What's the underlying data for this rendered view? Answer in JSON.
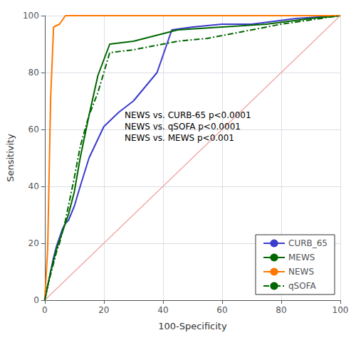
{
  "chart_data": {
    "type": "line",
    "xlabel": "100-Specificity",
    "ylabel": "Sensitivity",
    "xlim": [
      0,
      100
    ],
    "ylim": [
      0,
      100
    ],
    "xticks": [
      0,
      20,
      40,
      60,
      80,
      100
    ],
    "yticks": [
      0,
      20,
      40,
      60,
      80,
      100
    ],
    "grid": true,
    "legend": "lower right",
    "annotations": [
      {
        "text": "NEWS vs. CURB-65 p<0.0001\nNEWS vs. qSOFA p<0.0001\nNEWS vs. MEWS p<0.001",
        "x": 27,
        "y": 67
      }
    ],
    "series": [
      {
        "x": [
          0,
          100
        ],
        "values": [
          0,
          100
        ],
        "color": "#f0a0a0",
        "line_style": "solid"
      },
      {
        "name": "CURB_65",
        "color": "#3b3bcc",
        "line_style": "solid",
        "x": [
          0,
          1,
          2,
          3,
          4,
          5,
          6,
          7,
          8,
          10,
          12,
          15,
          20,
          25,
          30,
          38,
          43,
          50,
          60,
          70,
          85,
          100
        ],
        "values": [
          0,
          5,
          10,
          15,
          19,
          22,
          25,
          27,
          28,
          33,
          40,
          50,
          61,
          66,
          70,
          80,
          95,
          96,
          97,
          97,
          99,
          100
        ]
      },
      {
        "name": "MEWS",
        "color": "#006600",
        "line_style": "solid",
        "x": [
          0,
          1,
          2,
          3,
          4,
          5,
          6,
          7,
          8,
          10,
          12,
          15,
          18,
          22,
          30,
          45,
          60,
          75,
          90,
          100
        ],
        "values": [
          0,
          5,
          10,
          14,
          18,
          21,
          24,
          27,
          30,
          38,
          50,
          65,
          79,
          90,
          91,
          95,
          96,
          97,
          99,
          100
        ]
      },
      {
        "name": "NEWS",
        "color": "#ff7700",
        "line_style": "solid",
        "x": [
          0,
          1,
          2,
          3,
          5,
          7,
          100
        ],
        "values": [
          0,
          18,
          71,
          96,
          97,
          100,
          100
        ]
      },
      {
        "name": "qSOFA",
        "color": "#006600",
        "line_style": "dashdot",
        "x": [
          0,
          1,
          2,
          3,
          4,
          5,
          6,
          7,
          8,
          10,
          12,
          15,
          18,
          22,
          30,
          45,
          55,
          65,
          80,
          100
        ],
        "values": [
          0,
          5,
          9,
          13,
          17,
          20,
          24,
          28,
          33,
          43,
          54,
          65,
          73,
          87,
          88,
          91,
          92,
          94,
          97,
          100
        ]
      }
    ]
  }
}
